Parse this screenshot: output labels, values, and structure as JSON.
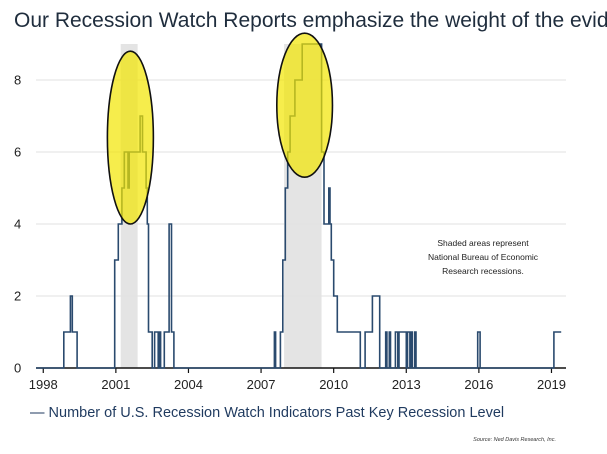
{
  "chart_data": {
    "type": "line",
    "title": "Our Recession Watch Reports emphasize the weight of the evidence",
    "xlabel": "",
    "ylabel": "",
    "xlim": [
      1997.7,
      2019.6
    ],
    "ylim": [
      0,
      9
    ],
    "yticks": [
      0,
      2,
      4,
      6,
      8
    ],
    "ytick_labels": [
      "0",
      "2",
      "4",
      "6",
      "8"
    ],
    "xticks": [
      1998,
      2001,
      2004,
      2007,
      2010,
      2013,
      2016,
      2019
    ],
    "xtick_labels": [
      "1998",
      "2001",
      "2004",
      "2007",
      "2010",
      "2013",
      "2016",
      "2019"
    ],
    "grid": "horizontal",
    "series": [
      {
        "name": "Number of U.S. Recession Watch Indicators Past Key Recession Level",
        "color": "#2a4a6e",
        "x": [
          1997.7,
          1998.8,
          1998.85,
          1999.05,
          1999.12,
          1999.2,
          1999.28,
          1999.4,
          1999.5,
          2000.9,
          2000.95,
          2001.0,
          2001.1,
          2001.25,
          2001.35,
          2001.45,
          2001.5,
          2001.55,
          2001.6,
          2001.7,
          2001.8,
          2001.9,
          2002.0,
          2002.1,
          2002.2,
          2002.25,
          2002.3,
          2002.35,
          2002.5,
          2002.55,
          2002.6,
          2002.7,
          2002.75,
          2002.8,
          2002.85,
          2002.9,
          2003.0,
          2003.1,
          2003.2,
          2003.3,
          2003.4,
          2007.5,
          2007.55,
          2007.6,
          2007.7,
          2007.8,
          2007.9,
          2008.0,
          2008.1,
          2008.2,
          2008.3,
          2008.4,
          2008.5,
          2008.7,
          2008.8,
          2008.9,
          2009.0,
          2009.4,
          2009.5,
          2009.6,
          2009.7,
          2009.8,
          2009.85,
          2009.9,
          2010.0,
          2010.1,
          2010.15,
          2010.2,
          2010.3,
          2010.5,
          2011.0,
          2011.1,
          2011.2,
          2011.3,
          2011.5,
          2011.6,
          2011.8,
          2011.9,
          2012.1,
          2012.15,
          2012.2,
          2012.25,
          2012.3,
          2012.35,
          2012.5,
          2012.55,
          2012.6,
          2012.65,
          2012.7,
          2012.75,
          2012.8,
          2013.0,
          2013.05,
          2013.1,
          2013.15,
          2013.2,
          2013.25,
          2013.3,
          2013.35,
          2013.4,
          2013.45,
          2013.5,
          2015.9,
          2015.95,
          2016.0,
          2016.05,
          2016.1,
          2016.15,
          2019.0,
          2019.1,
          2019.4
        ],
        "values": [
          0,
          0,
          1,
          1,
          2,
          1,
          1,
          0,
          0,
          0,
          3,
          3,
          4,
          5,
          6,
          6,
          5,
          6,
          6,
          6,
          6,
          6,
          7,
          6,
          6,
          5,
          4,
          1,
          0,
          0,
          1,
          1,
          0,
          1,
          0,
          0,
          1,
          1,
          4,
          1,
          0,
          0,
          1,
          0,
          0,
          1,
          3,
          5,
          6,
          7,
          7,
          8,
          8,
          9,
          9,
          9,
          9,
          9,
          6,
          4,
          4,
          5,
          4,
          3,
          2,
          2,
          1,
          1,
          1,
          1,
          1,
          0,
          0,
          1,
          1,
          2,
          2,
          0,
          0,
          1,
          0,
          0,
          1,
          0,
          0,
          1,
          1,
          0,
          1,
          1,
          1,
          0,
          1,
          1,
          0,
          1,
          0,
          0,
          1,
          0,
          0,
          0,
          0,
          1,
          1,
          0,
          0,
          0,
          0,
          1,
          1
        ]
      }
    ],
    "shaded_periods": [
      [
        2001.2,
        2001.9
      ],
      [
        2007.95,
        2009.5
      ]
    ],
    "highlight_circles": [
      {
        "x_center": 2001.6,
        "y_center": 6.4,
        "x_radius": 0.95,
        "y_radius": 2.4
      },
      {
        "x_center": 2008.8,
        "y_center": 7.3,
        "x_radius": 1.15,
        "y_radius": 2.0
      }
    ],
    "annotation_lines": [
      "Shaded areas represent",
      "National Bureau of Economic",
      "Research recessions."
    ],
    "legend_label": "— Number of U.S. Recession Watch Indicators Past Key Recession Level",
    "source": "Source: Ned Davis Research, Inc."
  }
}
